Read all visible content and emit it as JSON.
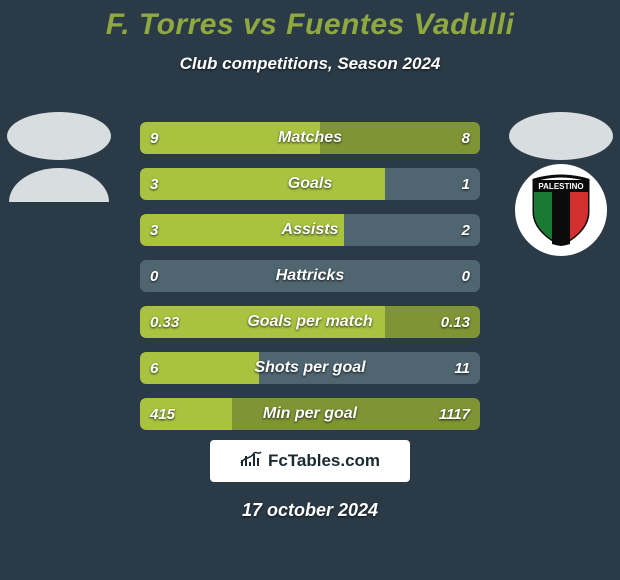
{
  "colors": {
    "background": "#2a3b47",
    "title": "#8fa840",
    "subtitle": "#ffffff",
    "bar_base": "#4f6570",
    "bar_left": "#a9c23f",
    "bar_right": "#7f9434",
    "footer_bg": "#ffffff",
    "footer_text": "#1a2a33",
    "avatar_placeholder": "#d8dde0",
    "badge_bg": "#ffffff",
    "badge_outline": "#0b0b0b"
  },
  "title": "F. Torres vs Fuentes Vadulli",
  "subtitle": "Club competitions, Season 2024",
  "date": "17 october 2024",
  "footer": {
    "logo_text": "FcTables.com"
  },
  "badge_right": {
    "text": "PALESTINO"
  },
  "bars": [
    {
      "label": "Matches",
      "left": "9",
      "right": "8",
      "lfrac": 0.53,
      "rfrac": 0.47
    },
    {
      "label": "Goals",
      "left": "3",
      "right": "1",
      "lfrac": 0.72,
      "rfrac": 0.0
    },
    {
      "label": "Assists",
      "left": "3",
      "right": "2",
      "lfrac": 0.6,
      "rfrac": 0.0
    },
    {
      "label": "Hattricks",
      "left": "0",
      "right": "0",
      "lfrac": 0.0,
      "rfrac": 0.0
    },
    {
      "label": "Goals per match",
      "left": "0.33",
      "right": "0.13",
      "lfrac": 0.72,
      "rfrac": 0.28
    },
    {
      "label": "Shots per goal",
      "left": "6",
      "right": "11",
      "lfrac": 0.35,
      "rfrac": 0.0
    },
    {
      "label": "Min per goal",
      "left": "415",
      "right": "1117",
      "lfrac": 0.27,
      "rfrac": 0.73
    }
  ]
}
